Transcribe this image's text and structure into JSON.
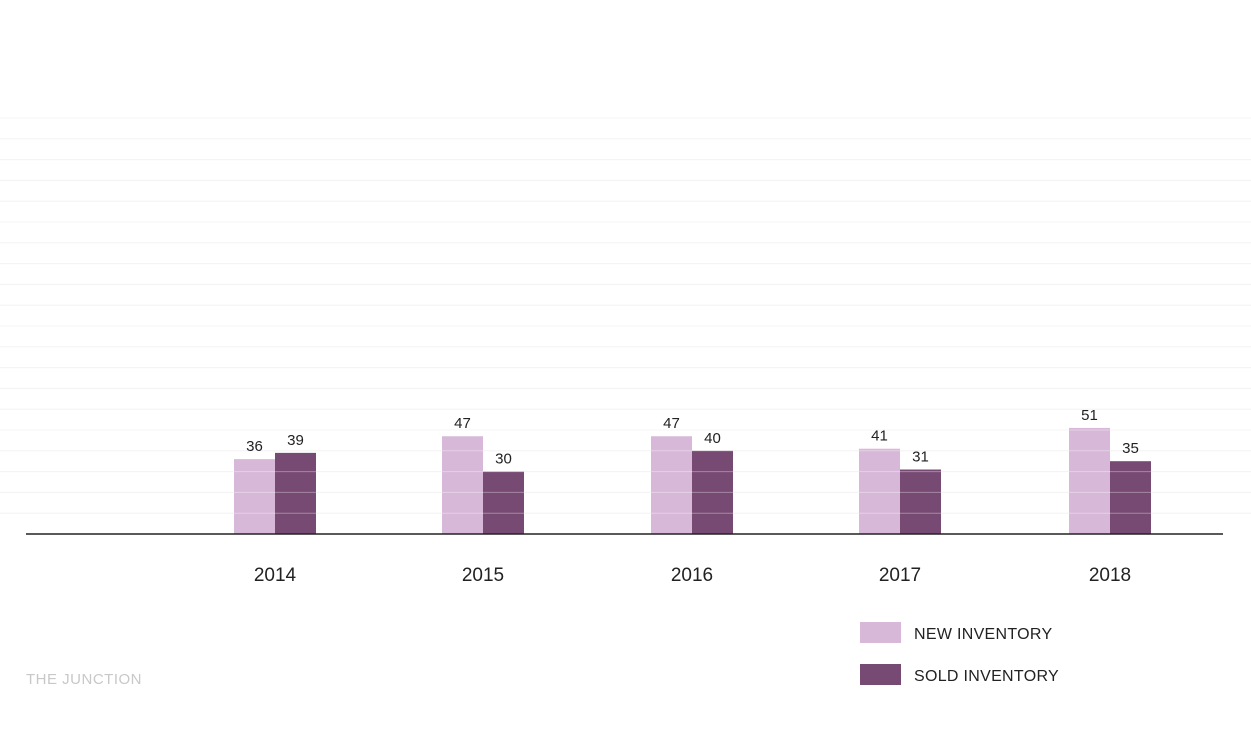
{
  "brand": "THE JUNCTION",
  "chart_data": {
    "type": "bar",
    "categories": [
      "2014",
      "2015",
      "2016",
      "2017",
      "2018"
    ],
    "series": [
      {
        "name": "NEW INVENTORY",
        "values": [
          36,
          47,
          47,
          41,
          51
        ],
        "color": "#d7b8d8"
      },
      {
        "name": "SOLD INVENTORY",
        "values": [
          39,
          30,
          40,
          31,
          35
        ],
        "color": "#764a72"
      }
    ],
    "ylim": [
      0,
      200
    ],
    "grid": true,
    "legend_position": "bottom-right",
    "data_labels": true
  }
}
